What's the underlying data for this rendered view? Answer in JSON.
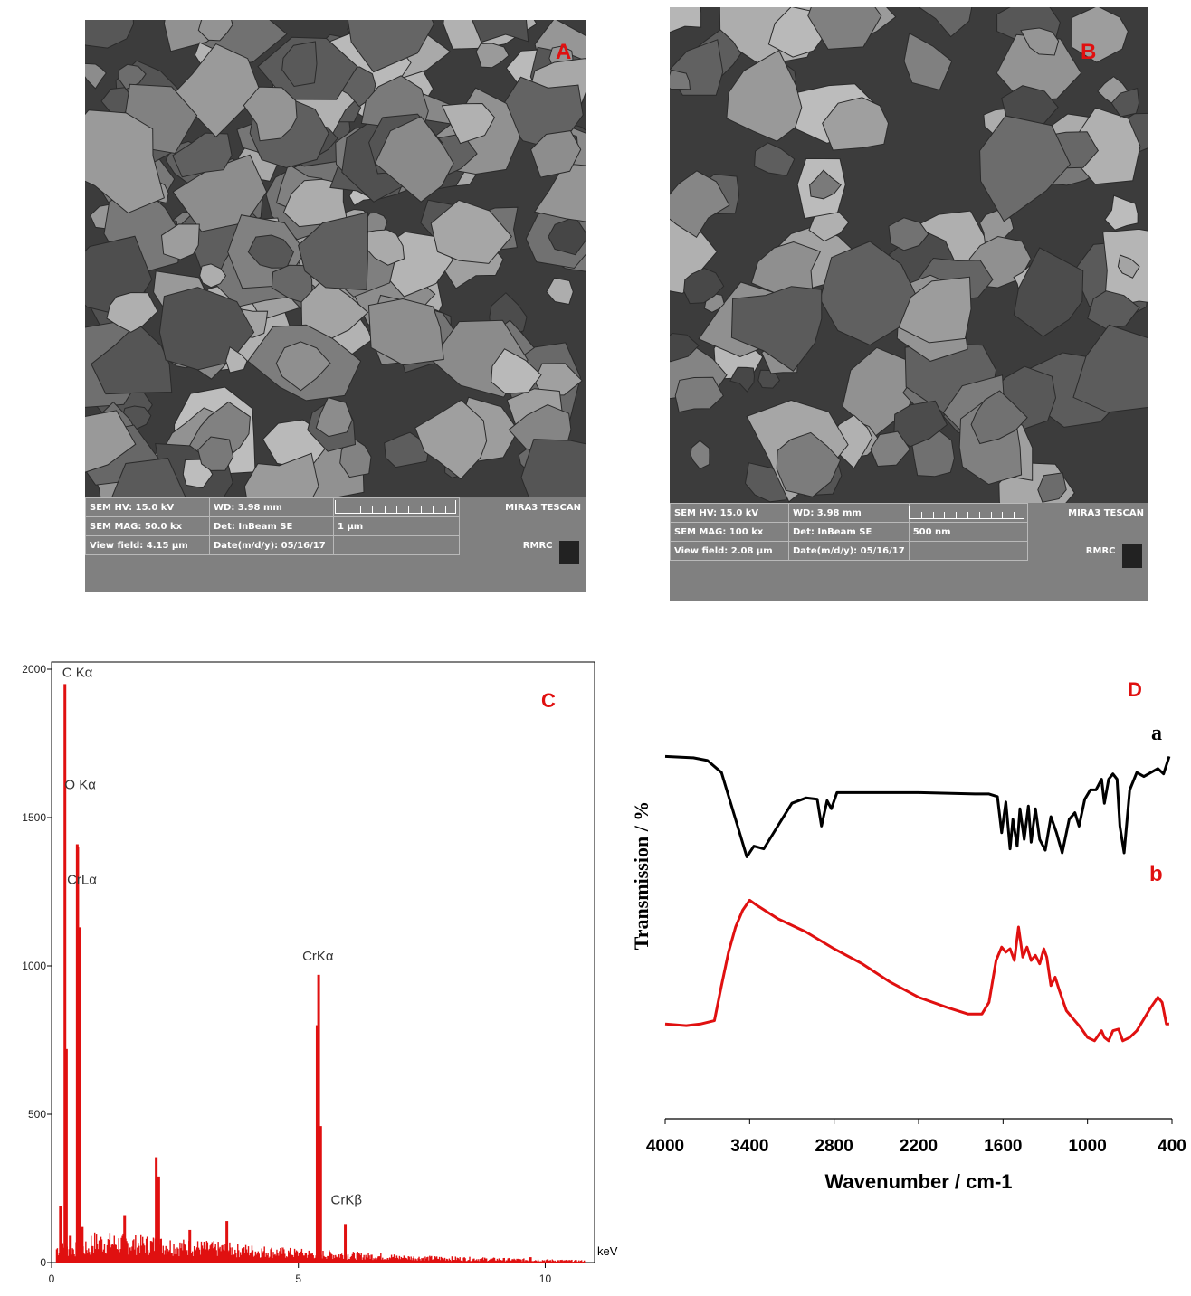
{
  "panels": {
    "A": {
      "letter": "A",
      "info": {
        "hv": "SEM HV: 15.0 kV",
        "wd": "WD: 3.98 mm",
        "mag": "SEM MAG: 50.0 kx",
        "det": "Det: InBeam SE",
        "scale": "1 μm",
        "vf": "View field: 4.15 μm",
        "date": "Date(m/d/y): 05/16/17",
        "brand": "MIRA3 TESCAN",
        "lab": "RMRC"
      }
    },
    "B": {
      "letter": "B",
      "info": {
        "hv": "SEM HV: 15.0 kV",
        "wd": "WD: 3.98 mm",
        "mag": "SEM MAG: 100 kx",
        "det": "Det: InBeam SE",
        "scale": "500 nm",
        "vf": "View field: 2.08 μm",
        "date": "Date(m/d/y): 05/16/17",
        "brand": "MIRA3 TESCAN",
        "lab": "RMRC"
      }
    },
    "C": {
      "letter": "C"
    },
    "D": {
      "letter": "D"
    }
  },
  "colors": {
    "red": "#e01010",
    "black": "#000000",
    "sem_bar": "#808080"
  },
  "chart_data": [
    {
      "panel": "C",
      "type": "bar",
      "xlabel": "keV",
      "ylabel": "",
      "xlim": [
        0,
        11.0
      ],
      "ylim": [
        0,
        2000
      ],
      "xticks": [
        0,
        5,
        10
      ],
      "yticks": [
        0,
        500,
        1000,
        1500,
        2000
      ],
      "color": "#e01010",
      "peaks": [
        {
          "x": 0.18,
          "y": 190
        },
        {
          "x": 0.27,
          "y": 1950
        },
        {
          "x": 0.3,
          "y": 720
        },
        {
          "x": 0.38,
          "y": 90
        },
        {
          "x": 0.52,
          "y": 1410
        },
        {
          "x": 0.53,
          "y": 1400
        },
        {
          "x": 0.57,
          "y": 1130
        },
        {
          "x": 0.62,
          "y": 120
        },
        {
          "x": 1.48,
          "y": 160
        },
        {
          "x": 2.12,
          "y": 355
        },
        {
          "x": 2.17,
          "y": 290
        },
        {
          "x": 2.8,
          "y": 110
        },
        {
          "x": 3.55,
          "y": 140
        },
        {
          "x": 5.38,
          "y": 800
        },
        {
          "x": 5.41,
          "y": 970
        },
        {
          "x": 5.45,
          "y": 460
        },
        {
          "x": 5.95,
          "y": 130
        },
        {
          "x": 9.7,
          "y": 18
        }
      ],
      "annotations": [
        {
          "label": "C Kα",
          "x": 0.27,
          "y": 1950
        },
        {
          "label": "O Kα",
          "x": 0.52,
          "y": 1590
        },
        {
          "label": "CrLα",
          "x": 0.57,
          "y": 1270
        },
        {
          "label": "CrKα",
          "x": 5.41,
          "y": 1000
        },
        {
          "label": "CrKβ",
          "x": 5.95,
          "y": 160
        }
      ]
    },
    {
      "panel": "D",
      "type": "line",
      "xlabel": "Wavenumber / cm-1",
      "ylabel": "Transmission  / %",
      "xlim": [
        4000,
        400
      ],
      "xticks": [
        4000,
        3400,
        2800,
        2200,
        1600,
        1000,
        400
      ],
      "series": [
        {
          "name": "a",
          "color": "#000000",
          "x": [
            4000,
            3800,
            3700,
            3600,
            3500,
            3420,
            3370,
            3300,
            3200,
            3100,
            3000,
            2920,
            2890,
            2850,
            2820,
            2780,
            2600,
            2200,
            1800,
            1700,
            1640,
            1610,
            1580,
            1550,
            1530,
            1500,
            1480,
            1450,
            1420,
            1400,
            1370,
            1340,
            1300,
            1260,
            1220,
            1180,
            1130,
            1090,
            1060,
            1020,
            980,
            940,
            900,
            880,
            850,
            820,
            790,
            770,
            740,
            700,
            650,
            600,
            550,
            500,
            460,
            420
          ],
          "y": [
            97,
            96,
            94,
            85,
            50,
            22,
            30,
            28,
            45,
            62,
            66,
            65,
            45,
            64,
            58,
            70,
            70,
            70,
            69,
            69,
            67,
            40,
            63,
            28,
            50,
            30,
            58,
            35,
            60,
            33,
            58,
            35,
            27,
            52,
            40,
            25,
            50,
            55,
            45,
            65,
            72,
            72,
            80,
            62,
            80,
            84,
            80,
            45,
            25,
            72,
            85,
            82,
            85,
            88,
            84,
            97
          ]
        },
        {
          "name": "b",
          "color": "#e01010",
          "x": [
            4000,
            3850,
            3750,
            3650,
            3600,
            3550,
            3500,
            3450,
            3400,
            3350,
            3200,
            3000,
            2800,
            2600,
            2400,
            2200,
            2000,
            1850,
            1750,
            1700,
            1650,
            1610,
            1580,
            1550,
            1520,
            1490,
            1460,
            1430,
            1400,
            1370,
            1340,
            1310,
            1290,
            1260,
            1230,
            1200,
            1150,
            1100,
            1050,
            1000,
            950,
            900,
            880,
            850,
            820,
            780,
            750,
            700,
            650,
            600,
            550,
            500,
            470,
            440,
            420
          ],
          "y": [
            22,
            21,
            22,
            24,
            45,
            65,
            80,
            90,
            96,
            93,
            85,
            77,
            67,
            58,
            47,
            38,
            32,
            28,
            28,
            35,
            60,
            68,
            65,
            67,
            60,
            80,
            62,
            68,
            60,
            63,
            58,
            67,
            62,
            45,
            50,
            42,
            30,
            25,
            20,
            14,
            12,
            18,
            14,
            12,
            18,
            19,
            12,
            14,
            18,
            25,
            32,
            38,
            35,
            22,
            22
          ]
        }
      ]
    }
  ]
}
